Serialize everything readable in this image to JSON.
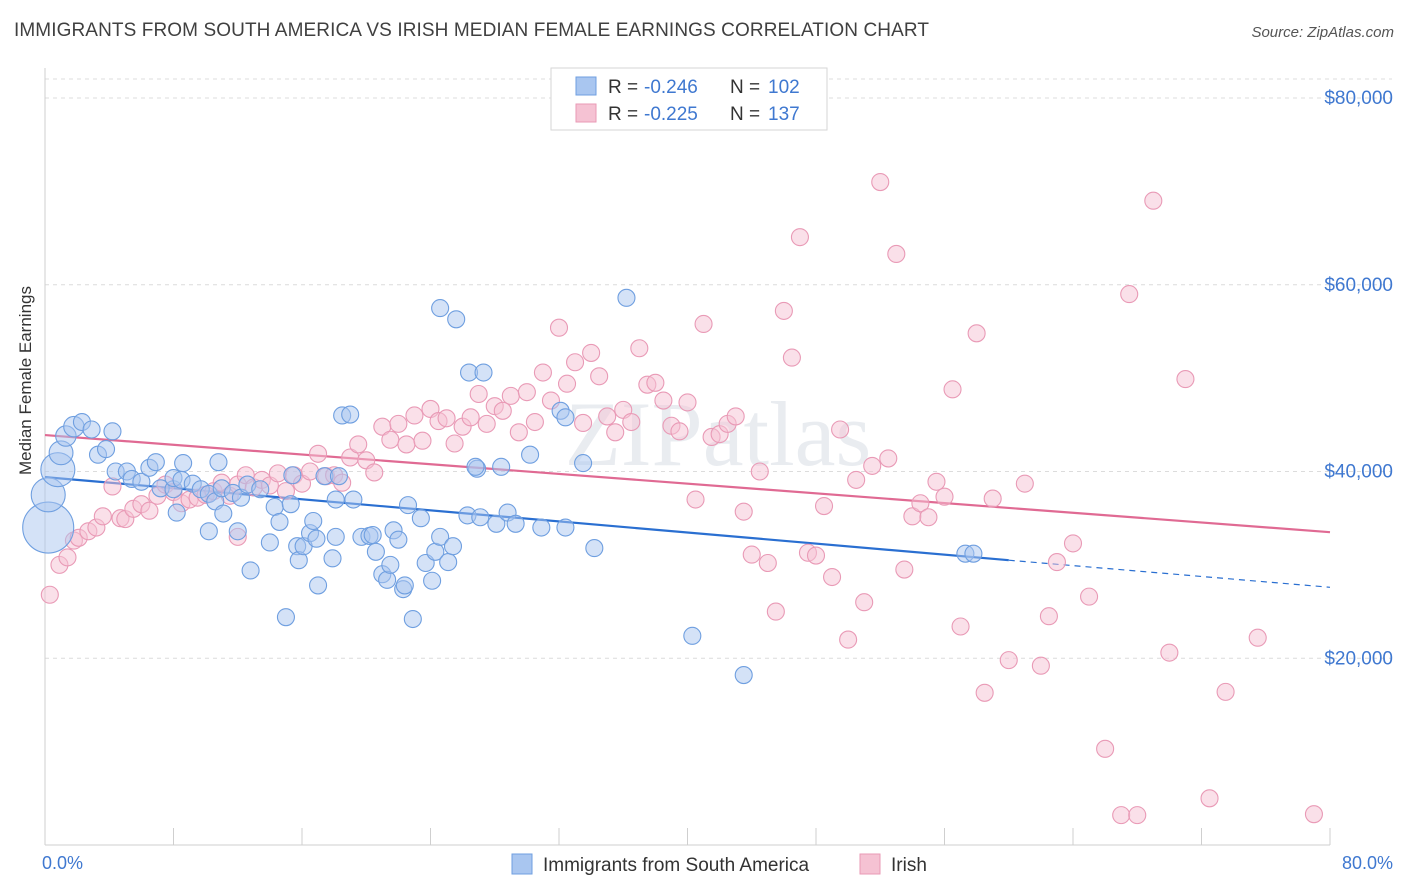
{
  "title": "IMMIGRANTS FROM SOUTH AMERICA VS IRISH MEDIAN FEMALE EARNINGS CORRELATION CHART",
  "source": "Source: ZipAtlas.com",
  "watermark": "ZIPatlas",
  "chart_data": {
    "type": "scatter",
    "title": "IMMIGRANTS FROM SOUTH AMERICA VS IRISH MEDIAN FEMALE EARNINGS CORRELATION CHART",
    "xlabel": "",
    "ylabel": "Median Female Earnings",
    "xlim": [
      0,
      80
    ],
    "ylim": [
      0,
      83000
    ],
    "x_tick_labels": {
      "min": "0.0%",
      "max": "80.0%"
    },
    "y_ticks": [
      {
        "value": 20000,
        "label": "$20,000"
      },
      {
        "value": 40000,
        "label": "$40,000"
      },
      {
        "value": 60000,
        "label": "$60,000"
      },
      {
        "value": 80000,
        "label": "$80,000"
      }
    ],
    "grid": "horizontal dashed",
    "legend_position": "top-center",
    "series": [
      {
        "name": "Immigrants from South America",
        "color": "#6f9fe0",
        "fill": "#a9c6f0",
        "line_color": "#2a6fd1",
        "R": "-0.246",
        "N": "102",
        "trend": {
          "x0": 0,
          "y0": 39400,
          "x1": 60,
          "y1": 30500,
          "dash_to_x": 80,
          "dash_to_y": 27600
        },
        "points": [
          [
            0.2,
            34000,
            3
          ],
          [
            0.2,
            37500,
            2
          ],
          [
            0.8,
            40200,
            2
          ],
          [
            1.0,
            42000,
            1.4
          ],
          [
            1.3,
            43800,
            1.2
          ],
          [
            1.8,
            44800,
            1.2
          ],
          [
            2.3,
            45300,
            1
          ],
          [
            2.9,
            44500,
            1
          ],
          [
            3.3,
            41800,
            1
          ],
          [
            3.8,
            42400,
            1
          ],
          [
            4.2,
            44300,
            1
          ],
          [
            4.4,
            40000,
            1
          ],
          [
            5.1,
            40000,
            1
          ],
          [
            5.4,
            39200,
            1
          ],
          [
            6.0,
            38900,
            1
          ],
          [
            6.5,
            40400,
            1
          ],
          [
            6.9,
            41000,
            1
          ],
          [
            7.2,
            38200,
            1
          ],
          [
            8.0,
            38100,
            1
          ],
          [
            8.0,
            39300,
            1
          ],
          [
            8.5,
            39100,
            1
          ],
          [
            8.6,
            40900,
            1
          ],
          [
            8.2,
            35600,
            1
          ],
          [
            9.2,
            38700,
            1
          ],
          [
            9.7,
            38100,
            1
          ],
          [
            10.2,
            37600,
            1
          ],
          [
            10.6,
            36800,
            1
          ],
          [
            11.0,
            38200,
            1
          ],
          [
            10.2,
            33600,
            1
          ],
          [
            10.8,
            41000,
            1
          ],
          [
            11.1,
            35500,
            1
          ],
          [
            11.7,
            37700,
            1
          ],
          [
            12.0,
            33600,
            1
          ],
          [
            12.2,
            37200,
            1
          ],
          [
            12.6,
            38600,
            1
          ],
          [
            12.8,
            29400,
            1
          ],
          [
            13.4,
            38100,
            1
          ],
          [
            14.0,
            32400,
            1
          ],
          [
            14.3,
            36200,
            1
          ],
          [
            14.6,
            34600,
            1
          ],
          [
            15.0,
            24400,
            1
          ],
          [
            15.3,
            36500,
            1
          ],
          [
            15.4,
            39600,
            1
          ],
          [
            15.7,
            32000,
            1
          ],
          [
            15.8,
            30500,
            1
          ],
          [
            16.1,
            32000,
            1
          ],
          [
            16.5,
            33400,
            1
          ],
          [
            16.7,
            34700,
            1
          ],
          [
            17.0,
            27800,
            1
          ],
          [
            16.9,
            32800,
            1
          ],
          [
            17.4,
            39500,
            1
          ],
          [
            17.9,
            30700,
            1
          ],
          [
            18.1,
            33000,
            1
          ],
          [
            18.1,
            37000,
            1
          ],
          [
            18.3,
            39500,
            1
          ],
          [
            18.5,
            46000,
            1
          ],
          [
            19.0,
            46100,
            1
          ],
          [
            19.2,
            37000,
            1
          ],
          [
            19.7,
            33000,
            1
          ],
          [
            20.2,
            33100,
            1
          ],
          [
            20.4,
            33200,
            1
          ],
          [
            20.6,
            31400,
            1
          ],
          [
            21.0,
            29000,
            1
          ],
          [
            21.3,
            28400,
            1
          ],
          [
            21.5,
            30000,
            1
          ],
          [
            21.7,
            33700,
            1
          ],
          [
            22.0,
            32700,
            1
          ],
          [
            22.3,
            27400,
            1
          ],
          [
            22.4,
            27800,
            1
          ],
          [
            22.6,
            36400,
            1
          ],
          [
            22.9,
            24200,
            1
          ],
          [
            23.4,
            35000,
            1
          ],
          [
            23.7,
            30200,
            1
          ],
          [
            24.1,
            28300,
            1
          ],
          [
            24.3,
            31400,
            1
          ],
          [
            24.6,
            33000,
            1
          ],
          [
            24.6,
            57500,
            1
          ],
          [
            25.1,
            30300,
            1
          ],
          [
            25.6,
            56300,
            1
          ],
          [
            25.4,
            32000,
            1
          ],
          [
            26.3,
            35300,
            1
          ],
          [
            26.4,
            50600,
            1
          ],
          [
            26.9,
            40300,
            1
          ],
          [
            27.1,
            35100,
            1
          ],
          [
            27.3,
            50600,
            1
          ],
          [
            28.1,
            34400,
            1
          ],
          [
            28.4,
            40500,
            1
          ],
          [
            28.8,
            35600,
            1
          ],
          [
            29.3,
            34400,
            1
          ],
          [
            30.2,
            41800,
            1
          ],
          [
            30.9,
            34000,
            1
          ],
          [
            32.1,
            46500,
            1
          ],
          [
            32.4,
            45800,
            1
          ],
          [
            32.4,
            34000,
            1
          ],
          [
            33.5,
            40900,
            1
          ],
          [
            34.2,
            31800,
            1
          ],
          [
            36.2,
            58600,
            1
          ],
          [
            40.3,
            22400,
            1
          ],
          [
            43.5,
            18200,
            1
          ],
          [
            57.3,
            31200,
            1
          ],
          [
            57.8,
            31200,
            1
          ],
          [
            26.8,
            40500,
            1
          ]
        ]
      },
      {
        "name": "Irish",
        "color": "#e99ab6",
        "fill": "#f5c2d3",
        "line_color": "#e06a93",
        "R": "-0.225",
        "N": "137",
        "trend": {
          "x0": 0,
          "y0": 43900,
          "x1": 80,
          "y1": 33500
        },
        "points": [
          [
            0.3,
            26800,
            1
          ],
          [
            0.9,
            30000,
            1
          ],
          [
            1.4,
            30800,
            1
          ],
          [
            1.8,
            32600,
            1
          ],
          [
            2.1,
            32900,
            1
          ],
          [
            2.7,
            33600,
            1
          ],
          [
            3.2,
            34000,
            1
          ],
          [
            3.6,
            35200,
            1
          ],
          [
            4.2,
            38400,
            1
          ],
          [
            4.7,
            35000,
            1
          ],
          [
            5.0,
            34900,
            1
          ],
          [
            5.5,
            36000,
            1
          ],
          [
            6.0,
            36500,
            1
          ],
          [
            6.5,
            35800,
            1
          ],
          [
            7.0,
            37400,
            1
          ],
          [
            7.5,
            38600,
            1
          ],
          [
            8.0,
            37800,
            1
          ],
          [
            8.5,
            36600,
            1
          ],
          [
            9.0,
            37000,
            1
          ],
          [
            9.5,
            37200,
            1
          ],
          [
            10.0,
            37500,
            1
          ],
          [
            10.5,
            37900,
            1
          ],
          [
            11.0,
            38800,
            1
          ],
          [
            11.5,
            37400,
            1
          ],
          [
            12.0,
            38600,
            1
          ],
          [
            12.5,
            39600,
            1
          ],
          [
            13.0,
            38300,
            1
          ],
          [
            13.5,
            39100,
            1
          ],
          [
            14.0,
            38500,
            1
          ],
          [
            14.5,
            39800,
            1
          ],
          [
            15.0,
            37900,
            1
          ],
          [
            15.5,
            39600,
            1
          ],
          [
            16.0,
            38700,
            1
          ],
          [
            16.5,
            40000,
            1
          ],
          [
            17.0,
            41900,
            1
          ],
          [
            17.5,
            39500,
            1
          ],
          [
            18.0,
            39600,
            1
          ],
          [
            18.5,
            38800,
            1
          ],
          [
            19.0,
            41500,
            1
          ],
          [
            19.5,
            42900,
            1
          ],
          [
            20.0,
            41200,
            1
          ],
          [
            20.5,
            39900,
            1
          ],
          [
            21.0,
            44800,
            1
          ],
          [
            21.5,
            43400,
            1
          ],
          [
            22.0,
            45100,
            1
          ],
          [
            22.5,
            42900,
            1
          ],
          [
            23.0,
            46000,
            1
          ],
          [
            23.5,
            43300,
            1
          ],
          [
            24.0,
            46700,
            1
          ],
          [
            24.5,
            45400,
            1
          ],
          [
            25.0,
            45700,
            1
          ],
          [
            25.5,
            43000,
            1
          ],
          [
            26.0,
            44800,
            1
          ],
          [
            26.5,
            45800,
            1
          ],
          [
            27.0,
            48300,
            1
          ],
          [
            27.5,
            45100,
            1
          ],
          [
            28.0,
            47000,
            1
          ],
          [
            28.5,
            46500,
            1
          ],
          [
            29.0,
            48100,
            1
          ],
          [
            29.5,
            44200,
            1
          ],
          [
            30.0,
            48500,
            1
          ],
          [
            30.5,
            45300,
            1
          ],
          [
            31.0,
            50600,
            1
          ],
          [
            31.5,
            47600,
            1
          ],
          [
            32.0,
            55400,
            1
          ],
          [
            32.5,
            49400,
            1
          ],
          [
            33.0,
            51700,
            1
          ],
          [
            33.5,
            45200,
            1
          ],
          [
            34.0,
            52700,
            1
          ],
          [
            34.5,
            50200,
            1
          ],
          [
            35.0,
            45900,
            1
          ],
          [
            35.5,
            44200,
            1
          ],
          [
            36.0,
            46600,
            1
          ],
          [
            36.5,
            45300,
            1
          ],
          [
            37.0,
            53200,
            1
          ],
          [
            37.5,
            49300,
            1
          ],
          [
            38.0,
            49500,
            1
          ],
          [
            38.5,
            47600,
            1
          ],
          [
            39.0,
            44900,
            1
          ],
          [
            39.5,
            44300,
            1
          ],
          [
            40.0,
            47400,
            1
          ],
          [
            40.5,
            37000,
            1
          ],
          [
            41.0,
            55800,
            1
          ],
          [
            41.5,
            43700,
            1
          ],
          [
            42.0,
            44000,
            1
          ],
          [
            42.5,
            45100,
            1
          ],
          [
            43.0,
            45900,
            1
          ],
          [
            43.5,
            35700,
            1
          ],
          [
            44.0,
            31100,
            1
          ],
          [
            44.5,
            40000,
            1
          ],
          [
            45.0,
            30200,
            1
          ],
          [
            45.5,
            25000,
            1
          ],
          [
            46.0,
            57200,
            1
          ],
          [
            46.5,
            52200,
            1
          ],
          [
            47.0,
            65100,
            1
          ],
          [
            47.5,
            31300,
            1
          ],
          [
            48.0,
            31000,
            1
          ],
          [
            48.5,
            36300,
            1
          ],
          [
            49.0,
            28700,
            1
          ],
          [
            49.5,
            44500,
            1
          ],
          [
            50.0,
            22000,
            1
          ],
          [
            50.5,
            39100,
            1
          ],
          [
            51.0,
            26000,
            1
          ],
          [
            51.5,
            40600,
            1
          ],
          [
            52.0,
            71000,
            1
          ],
          [
            52.5,
            41400,
            1
          ],
          [
            53.0,
            63300,
            1
          ],
          [
            53.5,
            29500,
            1
          ],
          [
            54.0,
            35200,
            1
          ],
          [
            54.5,
            36600,
            1
          ],
          [
            55.0,
            35100,
            1
          ],
          [
            55.5,
            38900,
            1
          ],
          [
            56.0,
            37300,
            1
          ],
          [
            56.5,
            48800,
            1
          ],
          [
            57.0,
            23400,
            1
          ],
          [
            58.0,
            54800,
            1
          ],
          [
            58.5,
            16300,
            1
          ],
          [
            59.0,
            37100,
            1
          ],
          [
            60.0,
            19800,
            1
          ],
          [
            61.0,
            38700,
            1
          ],
          [
            62.0,
            19200,
            1
          ],
          [
            62.5,
            24500,
            1
          ],
          [
            63.0,
            30300,
            1
          ],
          [
            64.0,
            32300,
            1
          ],
          [
            65.0,
            26600,
            1
          ],
          [
            66.0,
            10300,
            1
          ],
          [
            67.0,
            3200,
            1
          ],
          [
            67.5,
            59000,
            1
          ],
          [
            68.0,
            3200,
            1
          ],
          [
            69.0,
            69000,
            1
          ],
          [
            70.0,
            20600,
            1
          ],
          [
            71.0,
            49900,
            1
          ],
          [
            72.5,
            5000,
            1
          ],
          [
            73.5,
            16400,
            1
          ],
          [
            75.5,
            22200,
            1
          ],
          [
            79.0,
            3300,
            1
          ],
          [
            12.0,
            33000,
            1
          ]
        ]
      }
    ]
  }
}
